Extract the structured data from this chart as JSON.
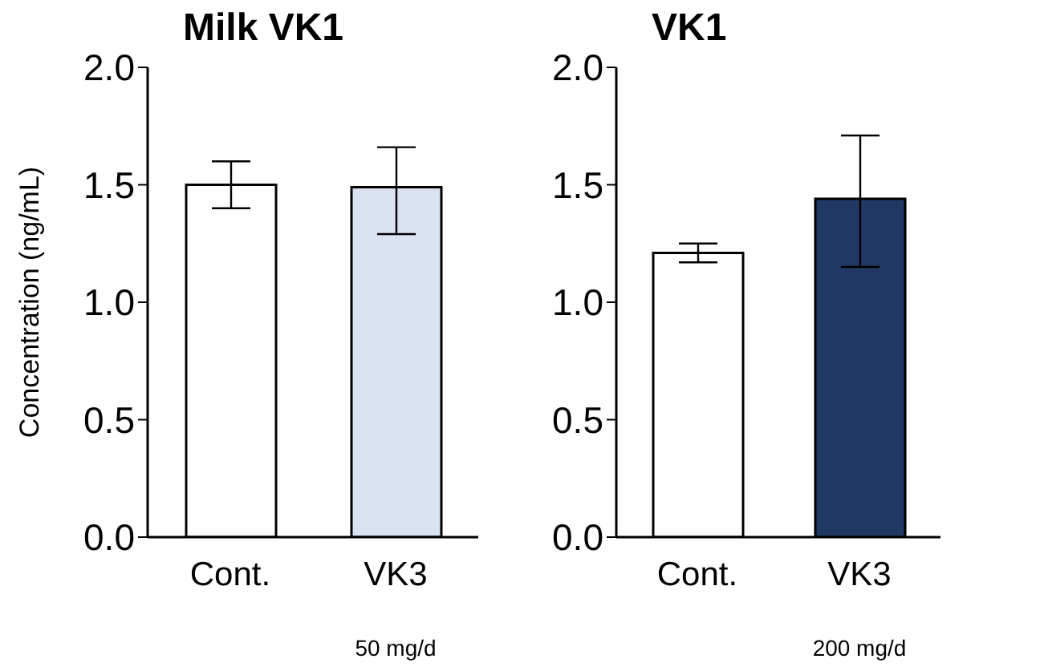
{
  "chart_data": [
    {
      "type": "bar",
      "title": "Milk VK1",
      "ylabel": "Concentration (ng/mL)",
      "categories": [
        "Cont.",
        "VK3"
      ],
      "values": [
        1.5,
        1.49
      ],
      "colors": [
        "#ffffff",
        "#dae3f3"
      ],
      "errors": [
        [
          1.4,
          1.6
        ],
        [
          1.29,
          1.66
        ]
      ],
      "ylim": [
        0,
        2
      ],
      "yticks": [
        {
          "value": 0,
          "label": "0.0"
        },
        {
          "value": 0.5,
          "label": "0.5"
        },
        {
          "value": 1,
          "label": "1.0"
        },
        {
          "value": 1.5,
          "label": "1.5"
        },
        {
          "value": 2,
          "label": "2.0"
        }
      ],
      "annotations": [
        "50 mg/d"
      ]
    },
    {
      "type": "bar",
      "title": "VK1",
      "categories": [
        "Cont.",
        "VK3"
      ],
      "values": [
        1.21,
        1.44
      ],
      "colors": [
        "#ffffff",
        "#203864"
      ],
      "errors": [
        [
          1.17,
          1.25
        ],
        [
          1.15,
          1.71
        ]
      ],
      "ylim": [
        0,
        2
      ],
      "yticks": [
        {
          "value": 0,
          "label": "0.0"
        },
        {
          "value": 0.5,
          "label": "0.5"
        },
        {
          "value": 1,
          "label": "1.0"
        },
        {
          "value": 1.5,
          "label": "1.5"
        },
        {
          "value": 2,
          "label": "2.0"
        }
      ],
      "annotations": [
        "200 mg/d"
      ]
    }
  ]
}
